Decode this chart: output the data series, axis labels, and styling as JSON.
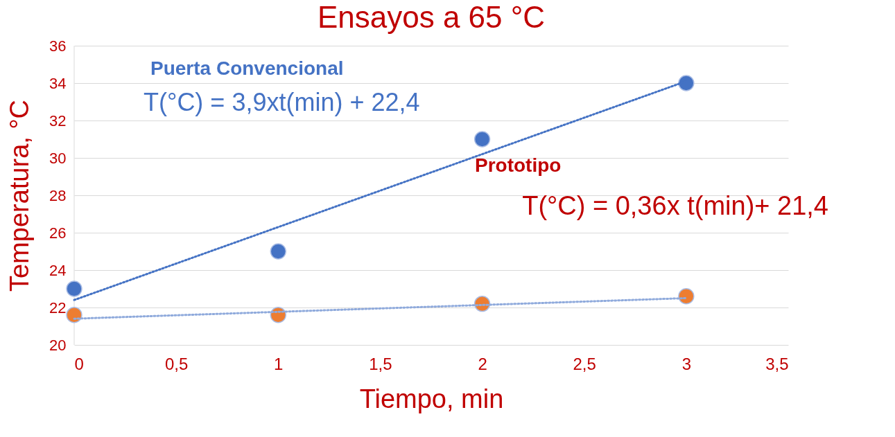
{
  "chart_data": {
    "type": "scatter",
    "title": "Ensayos a 65 °C",
    "xlabel": "Tiempo, min",
    "ylabel": "Temperatura, °C",
    "xlim": [
      0,
      3.5
    ],
    "xticks": [
      0,
      {
        "value": 0.5,
        "label": "0,5"
      },
      1,
      {
        "value": 1.5,
        "label": "1,5"
      },
      2,
      {
        "value": 2.5,
        "label": "2,5"
      },
      3,
      {
        "value": 3.5,
        "label": "3,5"
      }
    ],
    "ylim": [
      20,
      36
    ],
    "yticks": [
      20,
      22,
      24,
      26,
      28,
      30,
      32,
      34,
      36
    ],
    "grid": "y",
    "series": [
      {
        "color": "#4472c4",
        "marker": "circle",
        "x": [
          0,
          1,
          2,
          3
        ],
        "values": [
          23,
          25,
          31,
          34
        ]
      },
      {
        "color": "#ed7d31",
        "marker": "circle",
        "x": [
          0,
          1,
          2,
          3
        ],
        "values": [
          21.6,
          21.6,
          22.2,
          22.6
        ]
      },
      {
        "type": "line",
        "color": "#4472c4",
        "line_style": "dotted",
        "x": [
          0,
          3
        ],
        "values": [
          22.4,
          34.1
        ]
      },
      {
        "type": "line",
        "color": "#8faadc",
        "line_style": "dotted",
        "x": [
          0,
          3
        ],
        "values": [
          21.4,
          22.5
        ]
      }
    ],
    "annotations": [
      "Puerta Convencional",
      "T(°C) = 3,9xt(min) + 22,4",
      "Prototipo",
      "T(°C) = 0,36x t(min)+ 21,4"
    ]
  }
}
